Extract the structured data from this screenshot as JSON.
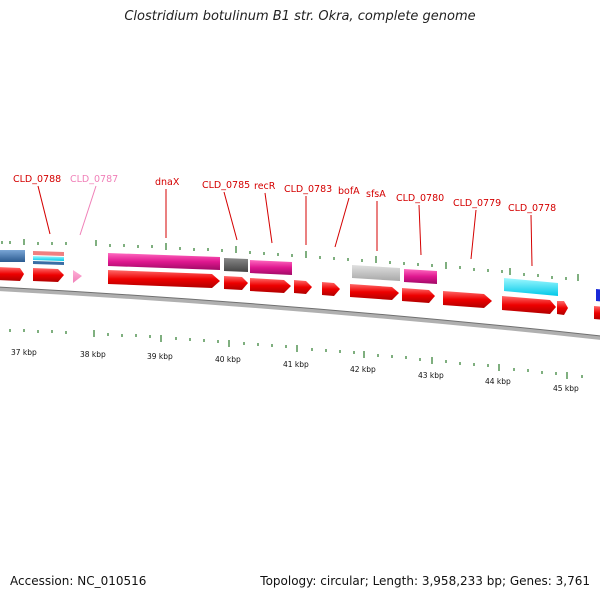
{
  "title": "Clostridium botulinum B1 str. Okra, complete genome",
  "footer": {
    "accession_label": "Accession:",
    "accession": "NC_010516",
    "topology_label": "Topology:",
    "topology": "circular",
    "length_label": "Length:",
    "length": "3,958,233 bp",
    "genes_label": "Genes:",
    "genes": "3,761"
  },
  "colors": {
    "label_red": "#d40000",
    "label_pink": "#f080b8",
    "arrow_red": "#ee0000",
    "magenta": "#e01890",
    "steel_blue": "#3a6ea5",
    "cyan": "#00e5ff",
    "gray": "#c0c0c0",
    "dark_gray": "#555555",
    "tick_green": "#2a7a2a",
    "backbone": "#808080"
  },
  "map": {
    "genes": [
      {
        "label": "CLD_0788"
      },
      {
        "label": "CLD_0787"
      },
      {
        "label": "dnaX"
      },
      {
        "label": "CLD_0785"
      },
      {
        "label": "recR"
      },
      {
        "label": "CLD_0783"
      },
      {
        "label": "bofA"
      },
      {
        "label": "sfsA"
      },
      {
        "label": "CLD_0780"
      },
      {
        "label": "CLD_0779"
      },
      {
        "label": "CLD_0778"
      }
    ],
    "kbp_ticks": [
      "37 kbp",
      "38 kbp",
      "39 kbp",
      "40 kbp",
      "41 kbp",
      "42 kbp",
      "43 kbp",
      "44 kbp",
      "45 kbp"
    ]
  }
}
